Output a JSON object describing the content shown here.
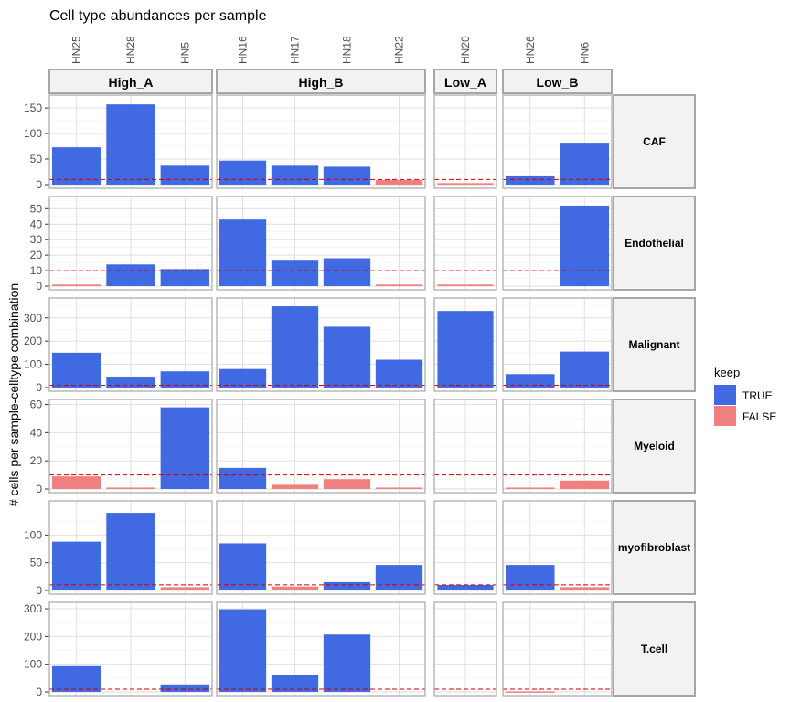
{
  "chart_data": {
    "type": "bar",
    "title": "Cell type abundances per sample",
    "ylabel": "# cells per sample-celltype combination",
    "xlabel": "",
    "threshold": 10,
    "groups": [
      {
        "name": "High_A",
        "samples": [
          "HN25",
          "HN28",
          "HN5"
        ]
      },
      {
        "name": "High_B",
        "samples": [
          "HN16",
          "HN17",
          "HN18",
          "HN22"
        ]
      },
      {
        "name": "Low_A",
        "samples": [
          "HN20"
        ]
      },
      {
        "name": "Low_B",
        "samples": [
          "HN26",
          "HN6"
        ]
      }
    ],
    "legend": {
      "title": "keep",
      "items": [
        {
          "label": "TRUE",
          "color": "#4169E1"
        },
        {
          "label": "FALSE",
          "color": "#F08080"
        }
      ]
    },
    "threshold_color": "#CC0000",
    "rows": [
      {
        "celltype": "CAF",
        "ylim": [
          0,
          168
        ],
        "yticks": [
          "0",
          "50",
          "100",
          "150"
        ],
        "tickvals": [
          0,
          50,
          100,
          150
        ],
        "values": {
          "HN25": 73,
          "HN28": 157,
          "HN5": 37,
          "HN16": 47,
          "HN17": 37,
          "HN18": 35,
          "HN22": 9,
          "HN20": 3,
          "HN26": 18,
          "HN6": 82
        }
      },
      {
        "celltype": "Endothelial",
        "ylim": [
          0,
          55.5
        ],
        "yticks": [
          "0",
          "10",
          "20",
          "30",
          "40",
          "50"
        ],
        "tickvals": [
          0,
          10,
          20,
          30,
          40,
          50
        ],
        "values": {
          "HN25": 1,
          "HN28": 14,
          "HN5": 11,
          "HN16": 43,
          "HN17": 17,
          "HN18": 18,
          "HN22": 1,
          "HN20": 1,
          "HN26": 0,
          "HN6": 52
        }
      },
      {
        "celltype": "Malignant",
        "ylim": [
          0,
          370
        ],
        "yticks": [
          "0",
          "100",
          "200",
          "300"
        ],
        "tickvals": [
          0,
          100,
          200,
          300
        ],
        "values": {
          "HN25": 150,
          "HN28": 47,
          "HN5": 70,
          "HN16": 80,
          "HN17": 350,
          "HN18": 262,
          "HN22": 120,
          "HN20": 330,
          "HN26": 58,
          "HN6": 155
        }
      },
      {
        "celltype": "Myeloid",
        "ylim": [
          0,
          61
        ],
        "yticks": [
          "0",
          "20",
          "40",
          "60"
        ],
        "tickvals": [
          0,
          20,
          40,
          60
        ],
        "values": {
          "HN25": 9,
          "HN28": 1,
          "HN5": 58,
          "HN16": 15,
          "HN17": 3,
          "HN18": 7,
          "HN22": 1,
          "HN20": 0,
          "HN26": 1,
          "HN6": 6
        }
      },
      {
        "celltype": "myofibroblast",
        "ylim": [
          0,
          155
        ],
        "yticks": [
          "0",
          "50",
          "100"
        ],
        "tickvals": [
          0,
          50,
          100
        ],
        "values": {
          "HN25": 88,
          "HN28": 140,
          "HN5": 6,
          "HN16": 85,
          "HN17": 7,
          "HN18": 15,
          "HN22": 46,
          "HN20": 10,
          "HN26": 46,
          "HN6": 6
        }
      },
      {
        "celltype": "T.cell",
        "ylim": [
          0,
          310
        ],
        "yticks": [
          "0",
          "100",
          "200",
          "300"
        ],
        "tickvals": [
          0,
          100,
          200,
          300
        ],
        "values": {
          "HN25": 93,
          "HN28": 0,
          "HN5": 27,
          "HN16": 298,
          "HN17": 60,
          "HN18": 207,
          "HN22": 0,
          "HN20": 0,
          "HN26": 2,
          "HN6": 0
        }
      }
    ]
  }
}
